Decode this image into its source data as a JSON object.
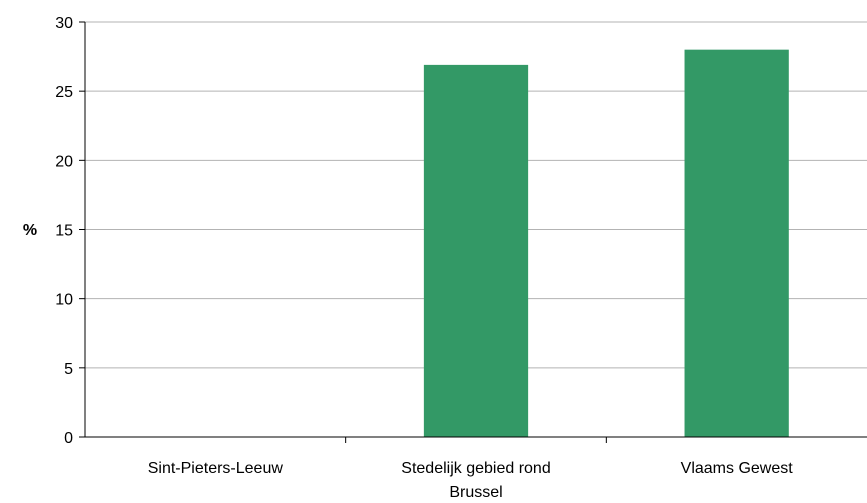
{
  "chart_data": {
    "type": "bar",
    "categories": [
      "Sint-Pieters-Leeuw",
      "Stedelijk gebied rond Brussel",
      "Vlaams Gewest"
    ],
    "values": [
      null,
      26.9,
      28.0
    ],
    "title": "",
    "xlabel": "",
    "ylabel": "%",
    "ylim": [
      0,
      30
    ],
    "yticks": [
      0,
      5,
      10,
      15,
      20,
      25,
      30
    ],
    "grid": true,
    "legend": "none",
    "bar_color": "#339966",
    "grid_color": "#b3b3b3"
  }
}
